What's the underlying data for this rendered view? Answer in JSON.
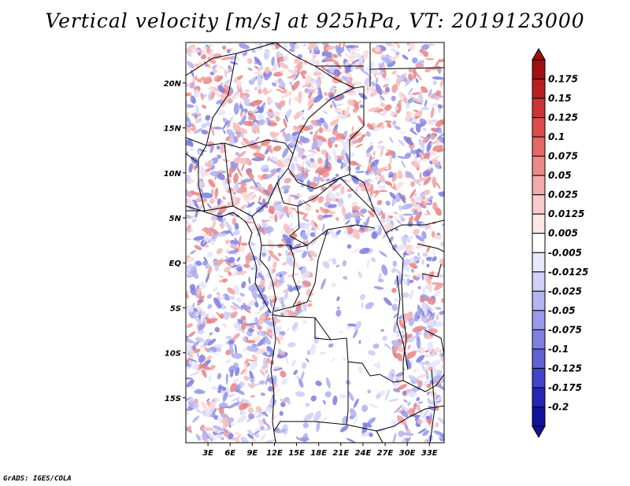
{
  "title": "Vertical velocity [m/s] at 925hPa, VT: 2019123000",
  "credit": "GrADS: IGES/COLA",
  "map": {
    "lat_labels": [
      "20N",
      "15N",
      "10N",
      "5N",
      "EQ",
      "5S",
      "10S",
      "15S"
    ],
    "lat_values": [
      20,
      15,
      10,
      5,
      0,
      -5,
      -10,
      -15
    ],
    "lon_labels": [
      "3E",
      "6E",
      "9E",
      "12E",
      "15E",
      "18E",
      "21E",
      "24E",
      "27E",
      "30E",
      "33E"
    ],
    "lon_values": [
      3,
      6,
      9,
      12,
      15,
      18,
      21,
      24,
      27,
      30,
      33
    ],
    "lon_range": [
      0,
      35
    ],
    "lat_range": [
      -20,
      24.5
    ]
  },
  "colorbar": {
    "labels": [
      "0.175",
      "0.15",
      "0.125",
      "0.1",
      "0.075",
      "0.05",
      "0.025",
      "0.0125",
      "0.005",
      "-0.005",
      "-0.0125",
      "-0.025",
      "-0.05",
      "-0.075",
      "-0.1",
      "-0.125",
      "-0.175",
      "-0.2"
    ],
    "colors": [
      "#a01010",
      "#b82020",
      "#cc3535",
      "#dd4c4c",
      "#e46868",
      "#ec8a8a",
      "#f2aaaa",
      "#f8cccc",
      "#fce6e6",
      "#ffffff",
      "#e8e8fc",
      "#d0d0f8",
      "#b4b4f2",
      "#9a9aec",
      "#7f7fe2",
      "#6262d6",
      "#4444c8",
      "#2626b2",
      "#12129a"
    ]
  },
  "colors": {
    "frame": "#000000",
    "border": "#000000",
    "neutral": "#ffffff"
  }
}
